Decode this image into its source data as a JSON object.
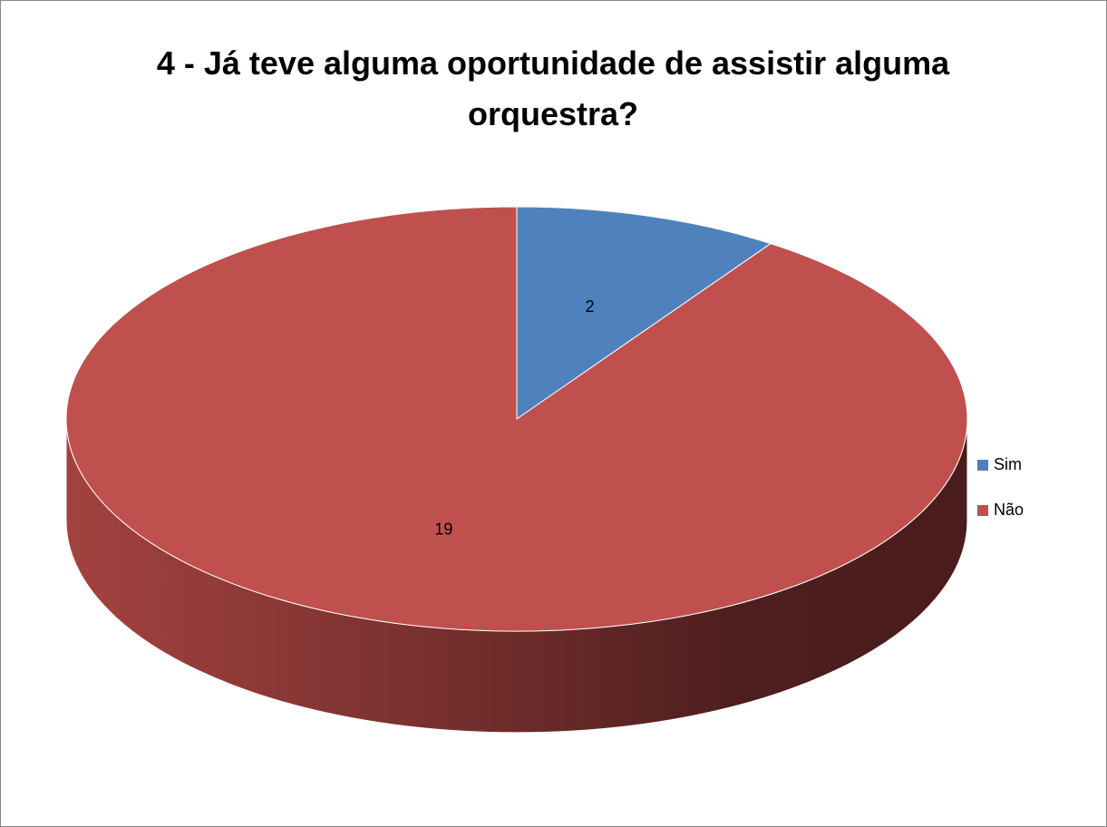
{
  "chart_data": {
    "type": "pie3d",
    "title": "4 - Já teve alguma oportunidade de assistir alguma orquestra?",
    "categories": [
      "Sim",
      "Não"
    ],
    "values": [
      2,
      19
    ],
    "colors": [
      "#4f81bd",
      "#c0504d"
    ],
    "legend": "right"
  }
}
